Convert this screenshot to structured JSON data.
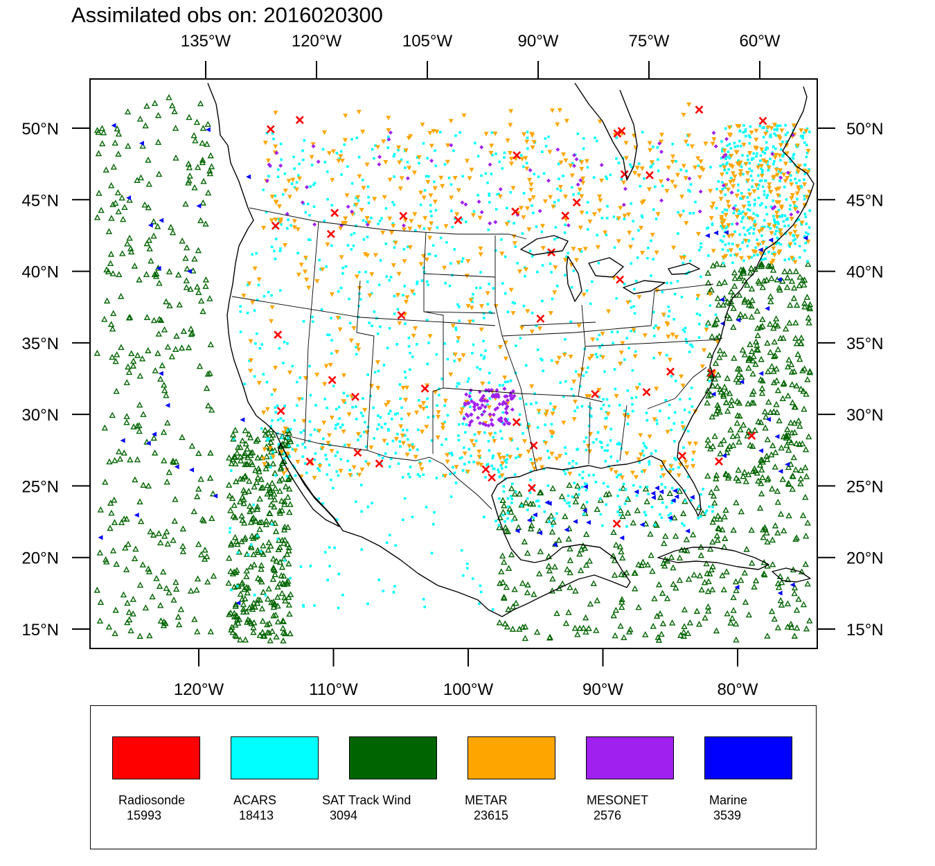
{
  "title": "Assimilated obs on: 2016020300",
  "map": {
    "top_lon_ticks": [
      {
        "lon": -135,
        "label": "135°W"
      },
      {
        "lon": -120,
        "label": "120°W"
      },
      {
        "lon": -105,
        "label": "105°W"
      },
      {
        "lon": -90,
        "label": "90°W"
      },
      {
        "lon": -75,
        "label": "75°W"
      },
      {
        "lon": -60,
        "label": "60°W"
      }
    ],
    "bottom_lon_ticks": [
      {
        "lon": -120,
        "label": "120°W"
      },
      {
        "lon": -110,
        "label": "110°W"
      },
      {
        "lon": -100,
        "label": "100°W"
      },
      {
        "lon": -90,
        "label": "90°W"
      },
      {
        "lon": -80,
        "label": "80°W"
      }
    ],
    "lat_ticks": [
      {
        "lat": 50,
        "label": "50°N"
      },
      {
        "lat": 45,
        "label": "45°N"
      },
      {
        "lat": 40,
        "label": "40°N"
      },
      {
        "lat": 35,
        "label": "35°N"
      },
      {
        "lat": 30,
        "label": "30°N"
      },
      {
        "lat": 25,
        "label": "25°N"
      },
      {
        "lat": 20,
        "label": "20°N"
      },
      {
        "lat": 15,
        "label": "15°N"
      }
    ],
    "colors": {
      "coastline": "#000000",
      "background": "#ffffff"
    }
  },
  "legend": [
    {
      "id": "radiosonde",
      "name": "Radiosonde",
      "count": "15993",
      "color": "#ff0000",
      "marker": "x-mark"
    },
    {
      "id": "acars",
      "name": "ACARS",
      "count": "18413",
      "color": "#00ffff",
      "marker": "square"
    },
    {
      "id": "sat-track-wind",
      "name": "SAT Track Wind",
      "count": "3094",
      "color": "#006400",
      "marker": "triangle-up"
    },
    {
      "id": "metar",
      "name": "METAR",
      "count": "23615",
      "color": "#ffa500",
      "marker": "triangle-down"
    },
    {
      "id": "mesonet",
      "name": "MESONET",
      "count": "2576",
      "color": "#a020f0",
      "marker": "diamond"
    },
    {
      "id": "marine",
      "name": "Marine",
      "count": "3539",
      "color": "#0000ff",
      "marker": "triangle-left"
    }
  ]
}
